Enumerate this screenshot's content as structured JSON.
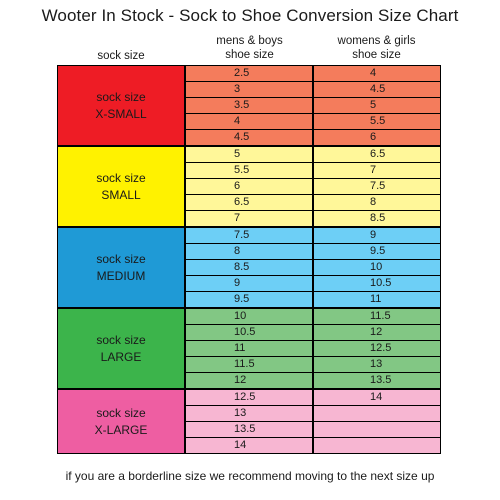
{
  "title": "Wooter In Stock - Sock to Shoe Conversion Size Chart",
  "headers": {
    "sock": "sock size",
    "mens_line1": "mens & boys",
    "mens_line2": "shoe size",
    "womens_line1": "womens & girls",
    "womens_line2": "shoe size"
  },
  "groups": [
    {
      "label_line1": "sock size",
      "label_line2": "X-SMALL",
      "label_color": "#ee1c25",
      "cell_color": "#f47c5c",
      "rows": [
        {
          "mens": "2.5",
          "womens": "4"
        },
        {
          "mens": "3",
          "womens": "4.5"
        },
        {
          "mens": "3.5",
          "womens": "5"
        },
        {
          "mens": "4",
          "womens": "5.5"
        },
        {
          "mens": "4.5",
          "womens": "6"
        }
      ]
    },
    {
      "label_line1": "sock size",
      "label_line2": "SMALL",
      "label_color": "#fff200",
      "cell_color": "#fff799",
      "rows": [
        {
          "mens": "5",
          "womens": "6.5"
        },
        {
          "mens": "5.5",
          "womens": "7"
        },
        {
          "mens": "6",
          "womens": "7.5"
        },
        {
          "mens": "6.5",
          "womens": "8"
        },
        {
          "mens": "7",
          "womens": "8.5"
        }
      ]
    },
    {
      "label_line1": "sock size",
      "label_line2": "MEDIUM",
      "label_color": "#1f9ad6",
      "cell_color": "#6dcff6",
      "rows": [
        {
          "mens": "7.5",
          "womens": "9"
        },
        {
          "mens": "8",
          "womens": "9.5"
        },
        {
          "mens": "8.5",
          "womens": "10"
        },
        {
          "mens": "9",
          "womens": "10.5"
        },
        {
          "mens": "9.5",
          "womens": "11"
        }
      ]
    },
    {
      "label_line1": "sock size",
      "label_line2": "LARGE",
      "label_color": "#3cb44b",
      "cell_color": "#82c784",
      "rows": [
        {
          "mens": "10",
          "womens": "11.5"
        },
        {
          "mens": "10.5",
          "womens": "12"
        },
        {
          "mens": "11",
          "womens": "12.5"
        },
        {
          "mens": "11.5",
          "womens": "13"
        },
        {
          "mens": "12",
          "womens": "13.5"
        }
      ]
    },
    {
      "label_line1": "sock size",
      "label_line2": "X-LARGE",
      "label_color": "#ee5ea2",
      "cell_color": "#f7b6d2",
      "rows": [
        {
          "mens": "12.5",
          "womens": "14"
        },
        {
          "mens": "13",
          "womens": ""
        },
        {
          "mens": "13.5",
          "womens": ""
        },
        {
          "mens": "14",
          "womens": ""
        }
      ]
    }
  ],
  "footer": "if you are a borderline size we recommend moving to the next size up"
}
